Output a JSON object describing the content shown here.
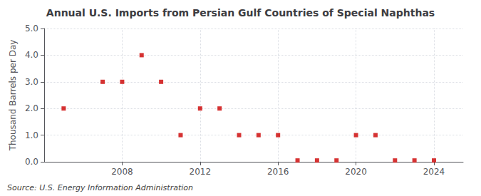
{
  "chart_data": {
    "type": "scatter",
    "title": "Annual U.S. Imports from Persian Gulf Countries of Special Naphthas",
    "ylabel": "Thousand Barrels per Day",
    "source": "Source: U.S. Energy Information Administration",
    "x": [
      2005,
      2007,
      2008,
      2009,
      2010,
      2011,
      2012,
      2013,
      2014,
      2015,
      2016,
      2017,
      2018,
      2019,
      2020,
      2021,
      2022,
      2023,
      2024
    ],
    "values": [
      2.0,
      3.0,
      3.0,
      4.0,
      3.0,
      1.0,
      2.0,
      2.0,
      1.0,
      1.0,
      1.0,
      0.05,
      0.05,
      0.05,
      1.0,
      1.0,
      0.05,
      0.05,
      0.05
    ],
    "color": "#cc0000",
    "marker": "square",
    "xlim": [
      2004.0,
      2025.5
    ],
    "xticks": [
      2008,
      2012,
      2016,
      2020,
      2024
    ],
    "ylim": [
      0.0,
      5.0
    ],
    "yticks": [
      {
        "value": 0.0,
        "label": "0.0"
      },
      {
        "value": 1.0,
        "label": "1.0"
      },
      {
        "value": 2.0,
        "label": "2.0"
      },
      {
        "value": 3.0,
        "label": "3.0"
      },
      {
        "value": 4.0,
        "label": "4.0"
      },
      {
        "value": 5.0,
        "label": "5.0"
      }
    ],
    "grid": true
  }
}
